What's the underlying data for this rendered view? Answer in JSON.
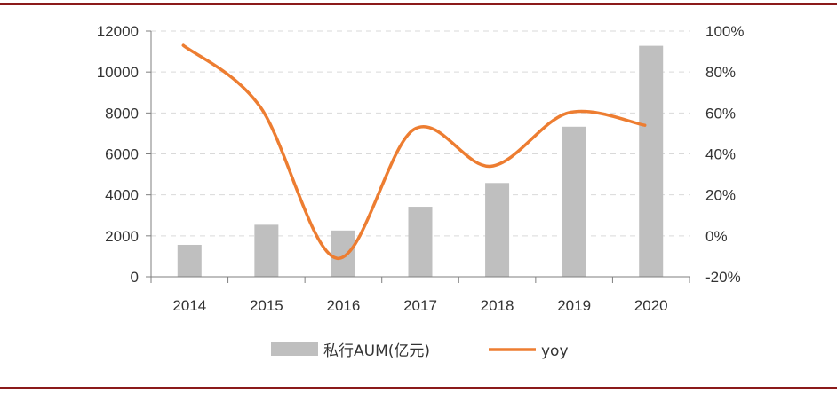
{
  "chart_data": {
    "type": "bar",
    "categories": [
      "2014",
      "2015",
      "2016",
      "2017",
      "2018",
      "2019",
      "2020"
    ],
    "series": [
      {
        "name": "私行AUM(亿元)",
        "type": "bar",
        "axis": "left",
        "color": "#bfbfbf",
        "values": [
          1560,
          2540,
          2260,
          3420,
          4580,
          7330,
          11280
        ]
      },
      {
        "name": "yoy",
        "type": "line",
        "axis": "right",
        "color": "#ed7d31",
        "values": [
          0.93,
          0.63,
          -0.11,
          0.52,
          0.34,
          0.6,
          0.54
        ]
      }
    ],
    "y_left": {
      "min": 0,
      "max": 12000,
      "ticks": [
        "0",
        "2000",
        "4000",
        "6000",
        "8000",
        "10000",
        "12000"
      ]
    },
    "y_right": {
      "min": -0.2,
      "max": 1.0,
      "ticks": [
        "-20%",
        "0%",
        "20%",
        "40%",
        "60%",
        "80%",
        "100%"
      ]
    },
    "grid": "horizontal-dashed",
    "legend": "bottom-center"
  }
}
